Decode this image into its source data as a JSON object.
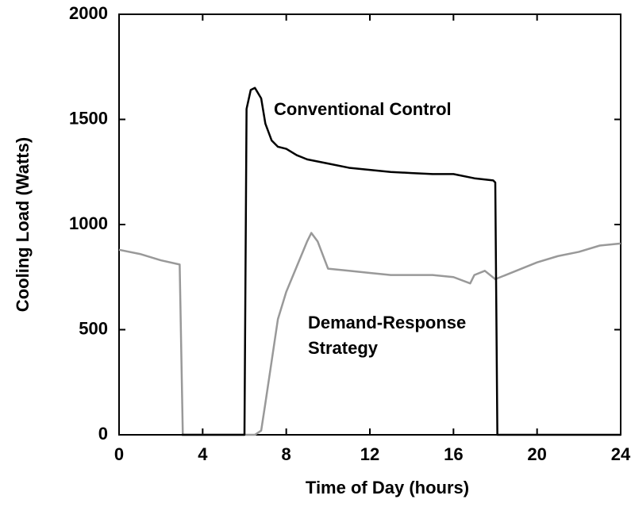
{
  "chart_data": {
    "type": "line",
    "xlabel": "Time of Day (hours)",
    "ylabel": "Cooling Load (Watts)",
    "xlim": [
      0,
      24
    ],
    "xticks": [
      0,
      4,
      8,
      12,
      16,
      20,
      24
    ],
    "ylim": [
      0,
      2000
    ],
    "yticks": [
      0,
      500,
      1000,
      1500,
      2000
    ],
    "series": [
      {
        "name": "Conventional Control",
        "color": "#000000",
        "x": [
          3,
          6,
          6.1,
          6.3,
          6.5,
          6.8,
          7,
          7.3,
          7.6,
          8,
          8.5,
          9,
          10,
          11,
          12,
          13,
          14,
          15,
          16,
          17,
          17.9,
          18,
          18.1,
          20,
          24
        ],
        "values": [
          0,
          0,
          1550,
          1640,
          1650,
          1600,
          1480,
          1400,
          1370,
          1360,
          1330,
          1310,
          1290,
          1270,
          1260,
          1250,
          1245,
          1240,
          1240,
          1220,
          1210,
          1200,
          0,
          0,
          0
        ]
      },
      {
        "name": "Demand-Response Strategy",
        "color": "#999999",
        "x": [
          0,
          1,
          2,
          2.9,
          3.05,
          6.5,
          6.8,
          7,
          7.3,
          7.6,
          8,
          8.5,
          9,
          9.2,
          9.5,
          10,
          11,
          12,
          13,
          14,
          15,
          16,
          16.8,
          17,
          17.5,
          18,
          19,
          20,
          21,
          22,
          23,
          24
        ],
        "values": [
          880,
          860,
          830,
          810,
          0,
          0,
          20,
          150,
          350,
          550,
          680,
          800,
          920,
          960,
          920,
          790,
          780,
          770,
          760,
          760,
          760,
          750,
          720,
          760,
          780,
          740,
          780,
          820,
          850,
          870,
          900,
          910
        ]
      }
    ]
  }
}
